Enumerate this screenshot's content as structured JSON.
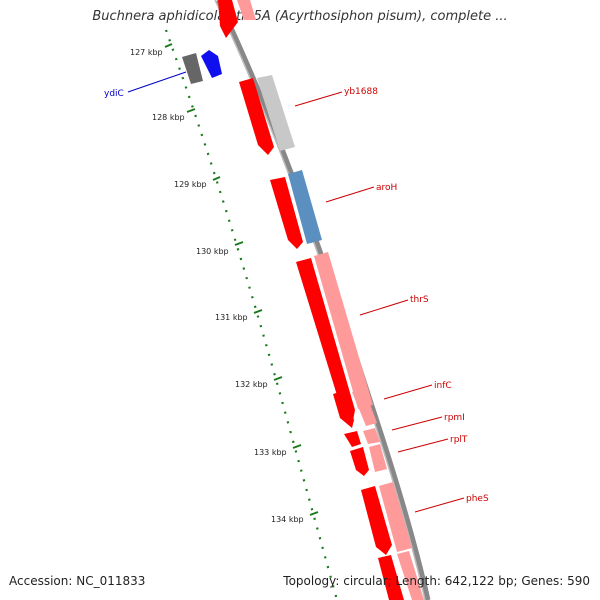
{
  "title": "Buchnera aphidicola str. 5A (Acyrthosiphon pisum), complete ...",
  "footer": {
    "accession": "Accession: NC_011833",
    "summary": "Topology: circular; Length: 642,122 bp; Genes: 590"
  },
  "colors": {
    "forward_gene": "#ff0000",
    "reverse_gene": "#ff9a9a",
    "gray_gene": "#c8c8c8",
    "blue_gene": "#5a8fc0",
    "ydic_gene": "#1010ee",
    "tick_mark": "#1a7a1a",
    "backbone": "#888888",
    "red_label": "#cc0000",
    "blue_label": "#0000cc"
  },
  "scale_ticks": [
    {
      "label": "127 kbp"
    },
    {
      "label": "128 kbp"
    },
    {
      "label": "129 kbp"
    },
    {
      "label": "130 kbp"
    },
    {
      "label": "131 kbp"
    },
    {
      "label": "132 kbp"
    },
    {
      "label": "133 kbp"
    },
    {
      "label": "134 kbp"
    }
  ],
  "genes": [
    {
      "name": "ydiC",
      "color": "blue"
    },
    {
      "name": "yb1688",
      "color": "red"
    },
    {
      "name": "aroH",
      "color": "red"
    },
    {
      "name": "thrS",
      "color": "red"
    },
    {
      "name": "infC",
      "color": "red"
    },
    {
      "name": "rpmI",
      "color": "red"
    },
    {
      "name": "rplT",
      "color": "red"
    },
    {
      "name": "pheS",
      "color": "red"
    }
  ]
}
